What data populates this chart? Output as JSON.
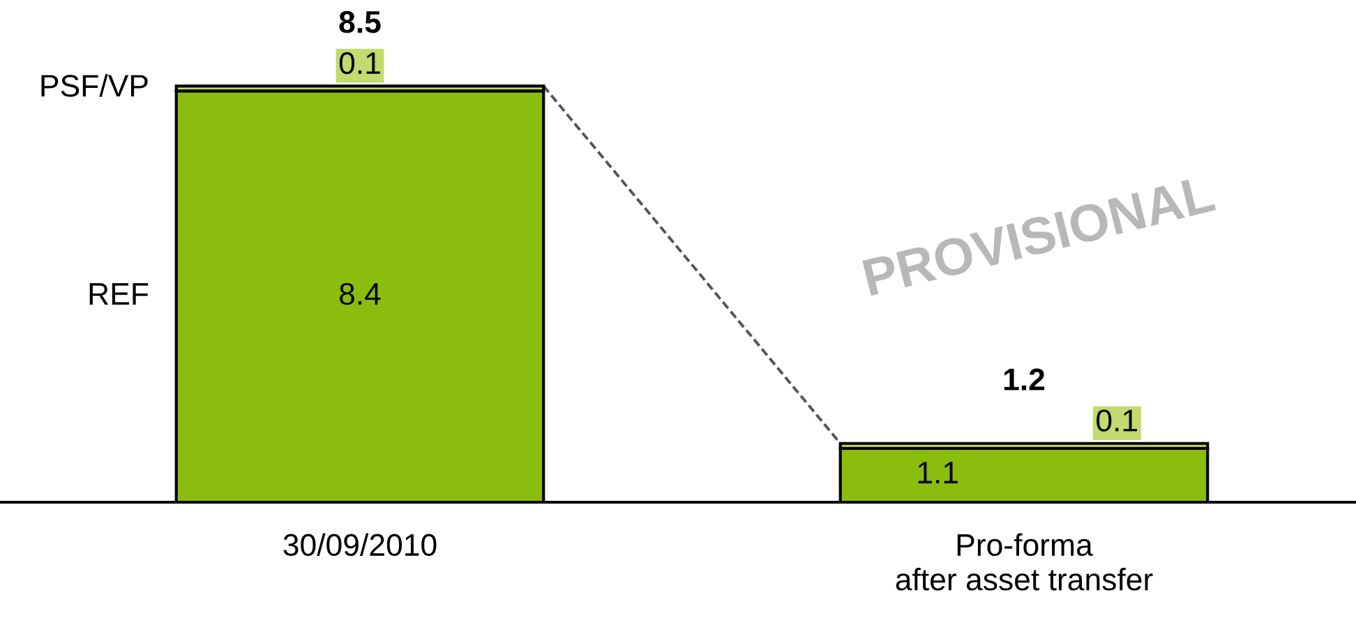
{
  "chart_data": {
    "type": "bar",
    "stacked": true,
    "categories": [
      "30/09/2010",
      "Pro-forma\nafter asset transfer"
    ],
    "series": [
      {
        "name": "REF",
        "color": "#8bbd0f",
        "values": [
          8.4,
          1.1
        ]
      },
      {
        "name": "PSF/VP",
        "color": "#c2da6e",
        "values": [
          0.1,
          0.1
        ]
      }
    ],
    "data_labels": true,
    "totals": [
      "8.5",
      "1.2"
    ],
    "legend": false,
    "annotations": [
      "PROVISIONAL"
    ]
  }
}
